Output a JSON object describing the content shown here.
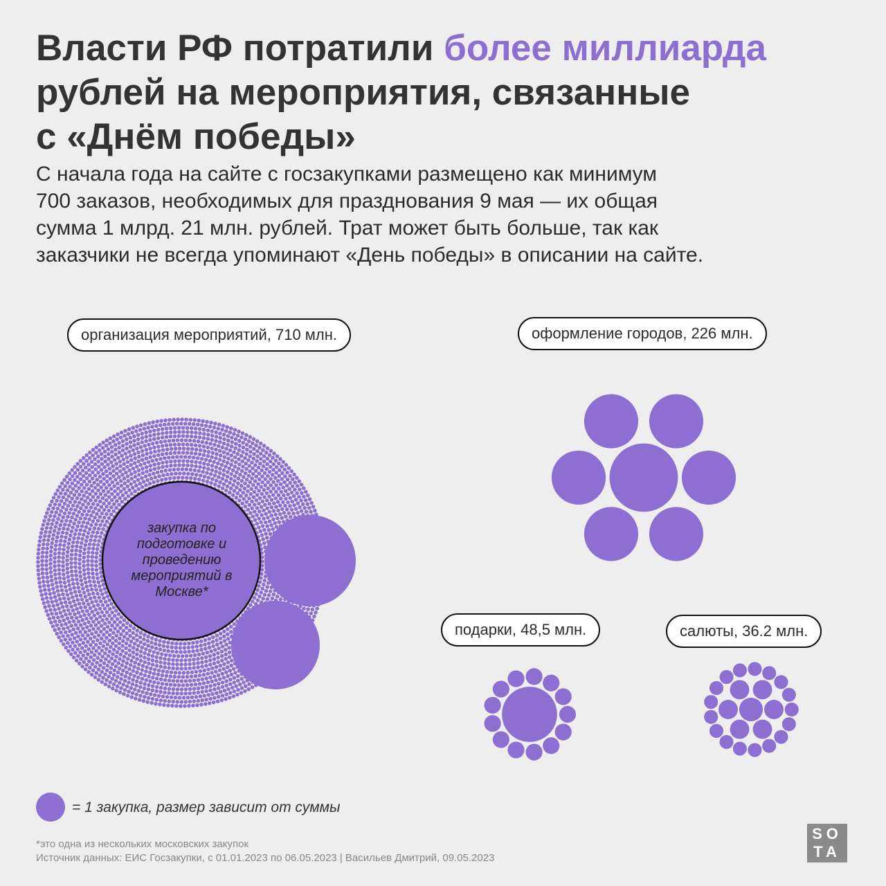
{
  "header": {
    "title_start": "Власти РФ потратили ",
    "title_highlight": "более миллиарда",
    "title_line2": "рублей на мероприятия, связанные",
    "title_line3": "с «Днём победы»",
    "subtitle_lines": [
      "С начала года на сайте с госзакупками размещено как минимум",
      "700 заказов, необходимых для празднования 9 мая — их общая",
      "сумма 1 млрд. 21 млн. рублей. Трат может быть больше, так как",
      "заказчики не всегда упоминают «День победы» в описании на сайте."
    ]
  },
  "groups": [
    {
      "label": "организация мероприятий, 710 млн."
    },
    {
      "label": "оформление городов, 226 млн."
    },
    {
      "label": "подарки, 48,5 млн."
    },
    {
      "label": "салюты, 36.2 млн."
    }
  ],
  "annotation": "закупка по подготовке и проведению мероприятий в Москве*",
  "legend": "= 1 закупка, размер зависит от суммы",
  "footnote": "*это одна из нескольких московских закупок",
  "source": "Источник данных: ЕИС Госзакупки, с 01.01.2023 по 06.05.2023 | Васильев Дмитрий, 09.05.2023",
  "logo": [
    "SO",
    "TA"
  ]
}
